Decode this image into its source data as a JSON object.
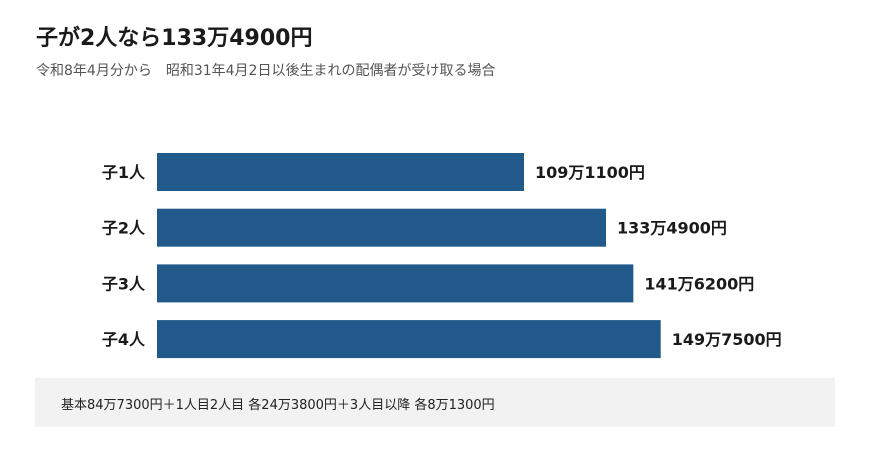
{
  "chart_data": {
    "type": "bar",
    "orientation": "horizontal",
    "title": "子が2人なら133万4900円",
    "subtitle": "令和8年4月分から　昭和31年4月2日以後生まれの配偶者が受け取る場合",
    "categories": [
      "子1人",
      "子2人",
      "子3人",
      "子4人"
    ],
    "values": [
      1091100,
      1334900,
      1416200,
      1497500
    ],
    "value_labels": [
      "109万1100円",
      "133万4900円",
      "141万6200円",
      "149万7500円"
    ],
    "bar_color": "#215a8a",
    "grid": false,
    "legend": "none",
    "note": "基本84万7300円＋1人目2人目 各24万3800円＋3人目以降 各8万1300円"
  }
}
